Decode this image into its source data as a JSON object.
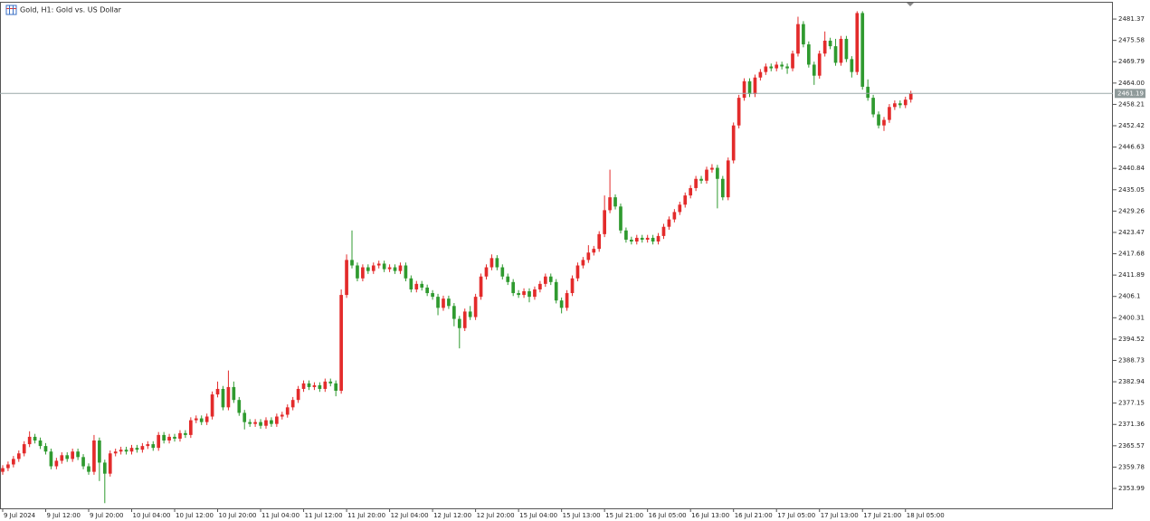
{
  "chart_data": {
    "type": "candlestick",
    "title": "Gold, H1:  Gold vs. US Dollar",
    "up_color": "#e32b2b",
    "down_color": "#2f9a2f",
    "grid": false,
    "bid_price": 2461.19,
    "xlim": [
      -0.5,
      206.6
    ],
    "ylim": [
      2348.59,
      2485.56
    ],
    "xticks": [
      {
        "value": 0,
        "label": "9 Jul 2024"
      },
      {
        "value": 8,
        "label": "9 Jul 12:00"
      },
      {
        "value": 16,
        "label": "9 Jul 20:00"
      },
      {
        "value": 24,
        "label": "10 Jul 04:00"
      },
      {
        "value": 32,
        "label": "10 Jul 12:00"
      },
      {
        "value": 40,
        "label": "10 Jul 20:00"
      },
      {
        "value": 48,
        "label": "11 Jul 04:00"
      },
      {
        "value": 56,
        "label": "11 Jul 12:00"
      },
      {
        "value": 64,
        "label": "11 Jul 20:00"
      },
      {
        "value": 72,
        "label": "12 Jul 04:00"
      },
      {
        "value": 80,
        "label": "12 Jul 12:00"
      },
      {
        "value": 88,
        "label": "12 Jul 20:00"
      },
      {
        "value": 96,
        "label": "15 Jul 04:00"
      },
      {
        "value": 104,
        "label": "15 Jul 13:00"
      },
      {
        "value": 112,
        "label": "15 Jul 21:00"
      },
      {
        "value": 120,
        "label": "16 Jul 05:00"
      },
      {
        "value": 128,
        "label": "16 Jul 13:00"
      },
      {
        "value": 136,
        "label": "16 Jul 21:00"
      },
      {
        "value": 144,
        "label": "17 Jul 05:00"
      },
      {
        "value": 152,
        "label": "17 Jul 13:00"
      },
      {
        "value": 160,
        "label": "17 Jul 21:00"
      },
      {
        "value": 168,
        "label": "18 Jul 05:00"
      }
    ],
    "yticks": [
      2481.37,
      2475.58,
      2469.79,
      {
        "value": 2464,
        "label": "2464.00"
      },
      2458.21,
      2452.42,
      2446.63,
      2440.84,
      2435.05,
      2429.26,
      2423.47,
      2417.68,
      2411.89,
      2406.1,
      2400.31,
      2394.52,
      2388.73,
      2382.94,
      2377.15,
      2371.36,
      2365.57,
      2359.78,
      2353.99
    ],
    "candles": [
      [
        2358.5,
        2360.3,
        2357.7,
        2359.5
      ],
      [
        2359.5,
        2361.3,
        2358.7,
        2360.5
      ],
      [
        2360.5,
        2362.8,
        2359.7,
        2362.0
      ],
      [
        2362.0,
        2364.3,
        2361.2,
        2363.5
      ],
      [
        2363.5,
        2366.8,
        2362.7,
        2366.0
      ],
      [
        2366.0,
        2369.5,
        2365.2,
        2368.0
      ],
      [
        2368.0,
        2368.8,
        2366.2,
        2367.0
      ],
      [
        2367.0,
        2367.8,
        2364.7,
        2365.5
      ],
      [
        2365.5,
        2366.3,
        2363.2,
        2364.0
      ],
      [
        2364.0,
        2364.8,
        2359.2,
        2360.0
      ],
      [
        2360.0,
        2362.3,
        2359.2,
        2361.5
      ],
      [
        2361.5,
        2363.8,
        2360.7,
        2363.0
      ],
      [
        2363.0,
        2363.8,
        2361.2,
        2362.0
      ],
      [
        2362.0,
        2364.8,
        2361.2,
        2364.0
      ],
      [
        2364.0,
        2364.8,
        2361.7,
        2362.5
      ],
      [
        2362.5,
        2363.3,
        2359.2,
        2360.0
      ],
      [
        2360.0,
        2360.8,
        2357.7,
        2358.5
      ],
      [
        2358.5,
        2368.5,
        2357.7,
        2367.0
      ],
      [
        2367.0,
        2367.8,
        2356.0,
        2361.0
      ],
      [
        2361.0,
        2361.8,
        2350.0,
        2358.0
      ],
      [
        2358.0,
        2364.3,
        2357.2,
        2363.5
      ],
      [
        2363.5,
        2364.8,
        2362.7,
        2364.0
      ],
      [
        2364.0,
        2365.3,
        2363.2,
        2364.5
      ],
      [
        2364.5,
        2365.3,
        2363.2,
        2364.0
      ],
      [
        2364.0,
        2365.8,
        2363.2,
        2365.0
      ],
      [
        2365.0,
        2365.8,
        2363.7,
        2364.5
      ],
      [
        2364.5,
        2366.3,
        2363.7,
        2365.5
      ],
      [
        2365.5,
        2366.8,
        2364.7,
        2366.0
      ],
      [
        2366.0,
        2366.8,
        2364.2,
        2365.0
      ],
      [
        2365.0,
        2369.3,
        2364.2,
        2368.5
      ],
      [
        2368.5,
        2369.3,
        2366.2,
        2367.0
      ],
      [
        2367.0,
        2368.8,
        2366.2,
        2368.0
      ],
      [
        2368.0,
        2368.8,
        2366.7,
        2367.5
      ],
      [
        2367.5,
        2369.8,
        2366.7,
        2369.0
      ],
      [
        2369.0,
        2369.8,
        2367.7,
        2368.5
      ],
      [
        2368.5,
        2373.3,
        2367.7,
        2372.5
      ],
      [
        2372.5,
        2373.8,
        2371.7,
        2373.0
      ],
      [
        2373.0,
        2373.8,
        2371.2,
        2372.0
      ],
      [
        2372.0,
        2374.3,
        2371.2,
        2373.5
      ],
      [
        2373.5,
        2380.3,
        2372.7,
        2379.5
      ],
      [
        2379.5,
        2383.0,
        2378.7,
        2381.0
      ],
      [
        2381.0,
        2381.8,
        2375.2,
        2376.0
      ],
      [
        2376.0,
        2386.0,
        2375.2,
        2381.5
      ],
      [
        2381.5,
        2383.0,
        2377.2,
        2378.0
      ],
      [
        2378.0,
        2378.8,
        2373.7,
        2374.5
      ],
      [
        2374.5,
        2375.3,
        2370.0,
        2372.0
      ],
      [
        2372.0,
        2372.8,
        2370.7,
        2371.5
      ],
      [
        2371.5,
        2372.8,
        2370.7,
        2372.0
      ],
      [
        2372.0,
        2372.8,
        2370.2,
        2371.0
      ],
      [
        2371.0,
        2373.3,
        2370.2,
        2372.5
      ],
      [
        2372.5,
        2373.3,
        2370.7,
        2371.5
      ],
      [
        2371.5,
        2374.3,
        2370.7,
        2373.5
      ],
      [
        2373.5,
        2374.8,
        2372.7,
        2374.0
      ],
      [
        2374.0,
        2376.8,
        2373.2,
        2376.0
      ],
      [
        2376.0,
        2378.8,
        2375.2,
        2378.0
      ],
      [
        2378.0,
        2381.8,
        2377.2,
        2381.0
      ],
      [
        2381.0,
        2383.3,
        2380.2,
        2382.5
      ],
      [
        2382.5,
        2383.3,
        2380.7,
        2381.5
      ],
      [
        2381.5,
        2382.8,
        2380.7,
        2382.0
      ],
      [
        2382.0,
        2382.8,
        2380.2,
        2381.0
      ],
      [
        2381.0,
        2383.8,
        2380.2,
        2383.0
      ],
      [
        2383.0,
        2383.8,
        2381.7,
        2382.5
      ],
      [
        2382.5,
        2383.3,
        2379.0,
        2380.5
      ],
      [
        2380.5,
        2408.0,
        2379.7,
        2406.5
      ],
      [
        2406.5,
        2417.5,
        2405.7,
        2416.0
      ],
      [
        2416.0,
        2424.0,
        2413.7,
        2414.5
      ],
      [
        2414.5,
        2415.3,
        2410.2,
        2411.0
      ],
      [
        2411.0,
        2414.8,
        2410.2,
        2414.0
      ],
      [
        2414.0,
        2414.8,
        2412.2,
        2413.0
      ],
      [
        2413.0,
        2415.3,
        2412.2,
        2414.5
      ],
      [
        2414.5,
        2415.8,
        2413.7,
        2415.0
      ],
      [
        2415.0,
        2415.8,
        2412.7,
        2413.5
      ],
      [
        2413.5,
        2414.8,
        2412.7,
        2414.0
      ],
      [
        2414.0,
        2414.8,
        2412.2,
        2413.0
      ],
      [
        2413.0,
        2415.3,
        2412.2,
        2414.5
      ],
      [
        2414.5,
        2415.3,
        2410.2,
        2411.0
      ],
      [
        2411.0,
        2411.8,
        2407.2,
        2408.0
      ],
      [
        2408.0,
        2410.3,
        2407.2,
        2409.5
      ],
      [
        2409.5,
        2410.3,
        2407.7,
        2408.5
      ],
      [
        2408.5,
        2409.3,
        2406.2,
        2407.0
      ],
      [
        2407.0,
        2407.8,
        2405.2,
        2406.0
      ],
      [
        2406.0,
        2406.8,
        2401.0,
        2403.0
      ],
      [
        2403.0,
        2406.3,
        2402.2,
        2405.5
      ],
      [
        2405.5,
        2406.3,
        2402.7,
        2403.5
      ],
      [
        2403.5,
        2404.3,
        2398.0,
        2400.0
      ],
      [
        2400.0,
        2400.8,
        2392.0,
        2397.5
      ],
      [
        2397.5,
        2402.8,
        2396.7,
        2402.0
      ],
      [
        2402.0,
        2403.5,
        2399.7,
        2400.5
      ],
      [
        2400.5,
        2406.8,
        2399.7,
        2406.0
      ],
      [
        2406.0,
        2412.3,
        2405.2,
        2411.5
      ],
      [
        2411.5,
        2414.8,
        2410.7,
        2414.0
      ],
      [
        2414.0,
        2417.5,
        2413.2,
        2416.5
      ],
      [
        2416.5,
        2417.3,
        2413.2,
        2414.0
      ],
      [
        2414.0,
        2414.8,
        2410.7,
        2411.5
      ],
      [
        2411.5,
        2412.3,
        2409.2,
        2410.0
      ],
      [
        2410.0,
        2410.8,
        2406.2,
        2407.0
      ],
      [
        2407.0,
        2407.8,
        2405.7,
        2406.5
      ],
      [
        2406.5,
        2408.3,
        2405.7,
        2407.5
      ],
      [
        2407.5,
        2408.3,
        2404.5,
        2406.0
      ],
      [
        2406.0,
        2408.8,
        2405.2,
        2408.0
      ],
      [
        2408.0,
        2410.3,
        2407.2,
        2409.5
      ],
      [
        2409.5,
        2412.3,
        2408.7,
        2411.5
      ],
      [
        2411.5,
        2412.3,
        2409.2,
        2410.0
      ],
      [
        2410.0,
        2410.8,
        2404.2,
        2405.0
      ],
      [
        2405.0,
        2405.8,
        2401.5,
        2403.0
      ],
      [
        2403.0,
        2407.8,
        2402.2,
        2407.0
      ],
      [
        2407.0,
        2411.8,
        2406.2,
        2411.0
      ],
      [
        2411.0,
        2415.3,
        2410.2,
        2414.5
      ],
      [
        2414.5,
        2416.8,
        2413.7,
        2416.0
      ],
      [
        2416.0,
        2420.0,
        2415.2,
        2418.0
      ],
      [
        2418.0,
        2419.8,
        2417.2,
        2419.0
      ],
      [
        2419.0,
        2423.8,
        2418.2,
        2423.0
      ],
      [
        2423.0,
        2433.5,
        2422.2,
        2429.5
      ],
      [
        2429.5,
        2440.5,
        2428.7,
        2433.0
      ],
      [
        2433.0,
        2433.8,
        2429.7,
        2430.5
      ],
      [
        2430.5,
        2431.3,
        2423.2,
        2424.0
      ],
      [
        2424.0,
        2424.8,
        2420.7,
        2421.5
      ],
      [
        2421.5,
        2422.3,
        2420.2,
        2421.0
      ],
      [
        2421.0,
        2422.8,
        2420.2,
        2422.0
      ],
      [
        2422.0,
        2422.8,
        2420.7,
        2421.5
      ],
      [
        2421.5,
        2422.8,
        2420.7,
        2422.0
      ],
      [
        2422.0,
        2422.8,
        2420.2,
        2421.0
      ],
      [
        2421.0,
        2423.3,
        2420.2,
        2422.5
      ],
      [
        2422.5,
        2425.8,
        2421.7,
        2425.0
      ],
      [
        2425.0,
        2427.8,
        2424.2,
        2427.0
      ],
      [
        2427.0,
        2429.8,
        2426.2,
        2429.0
      ],
      [
        2429.0,
        2431.8,
        2428.2,
        2431.0
      ],
      [
        2431.0,
        2434.3,
        2430.2,
        2433.5
      ],
      [
        2433.5,
        2436.3,
        2432.7,
        2435.5
      ],
      [
        2435.5,
        2438.8,
        2434.7,
        2438.0
      ],
      [
        2438.0,
        2438.8,
        2436.7,
        2437.5
      ],
      [
        2437.5,
        2441.3,
        2436.7,
        2440.5
      ],
      [
        2440.5,
        2442.0,
        2439.7,
        2441.0
      ],
      [
        2441.0,
        2441.8,
        2430.0,
        2438.0
      ],
      [
        2438.0,
        2438.8,
        2432.2,
        2433.0
      ],
      [
        2433.0,
        2443.8,
        2432.2,
        2443.0
      ],
      [
        2443.0,
        2453.3,
        2442.2,
        2452.5
      ],
      [
        2452.5,
        2460.8,
        2451.7,
        2460.0
      ],
      [
        2460.0,
        2465.3,
        2459.2,
        2464.5
      ],
      [
        2464.5,
        2465.3,
        2460.2,
        2461.0
      ],
      [
        2461.0,
        2466.3,
        2460.2,
        2465.5
      ],
      [
        2465.5,
        2467.8,
        2464.7,
        2467.0
      ],
      [
        2467.0,
        2469.3,
        2466.2,
        2468.5
      ],
      [
        2468.5,
        2469.3,
        2467.2,
        2468.0
      ],
      [
        2468.0,
        2469.8,
        2467.2,
        2469.0
      ],
      [
        2469.0,
        2469.8,
        2467.7,
        2468.5
      ],
      [
        2468.5,
        2469.3,
        2466.5,
        2468.0
      ],
      [
        2468.0,
        2472.8,
        2467.2,
        2472.0
      ],
      [
        2472.0,
        2482.0,
        2471.2,
        2480.0
      ],
      [
        2480.0,
        2480.8,
        2473.7,
        2474.5
      ],
      [
        2474.5,
        2475.3,
        2468.2,
        2469.0
      ],
      [
        2469.0,
        2469.8,
        2463.5,
        2466.0
      ],
      [
        2466.0,
        2472.8,
        2465.2,
        2472.0
      ],
      [
        2472.0,
        2478.0,
        2471.2,
        2475.5
      ],
      [
        2475.5,
        2476.3,
        2473.2,
        2474.0
      ],
      [
        2474.0,
        2476.0,
        2468.7,
        2469.5
      ],
      [
        2469.5,
        2476.8,
        2468.7,
        2476.0
      ],
      [
        2476.0,
        2476.8,
        2469.7,
        2470.5
      ],
      [
        2470.5,
        2471.3,
        2465.5,
        2467.0
      ],
      [
        2467.0,
        2483.5,
        2466.2,
        2483.0
      ],
      [
        2483.0,
        2483.5,
        2462.2,
        2463.0
      ],
      [
        2463.0,
        2465.0,
        2459.2,
        2460.0
      ],
      [
        2460.0,
        2460.8,
        2454.7,
        2455.5
      ],
      [
        2455.5,
        2456.3,
        2451.7,
        2452.5
      ],
      [
        2452.5,
        2454.8,
        2451.0,
        2454.0
      ],
      [
        2454.0,
        2458.3,
        2453.2,
        2457.5
      ],
      [
        2457.5,
        2459.3,
        2456.7,
        2458.5
      ],
      [
        2458.5,
        2459.3,
        2457.2,
        2458.0
      ],
      [
        2458.0,
        2460.3,
        2457.2,
        2459.5
      ],
      [
        2459.5,
        2461.9,
        2458.7,
        2461.19
      ]
    ]
  }
}
